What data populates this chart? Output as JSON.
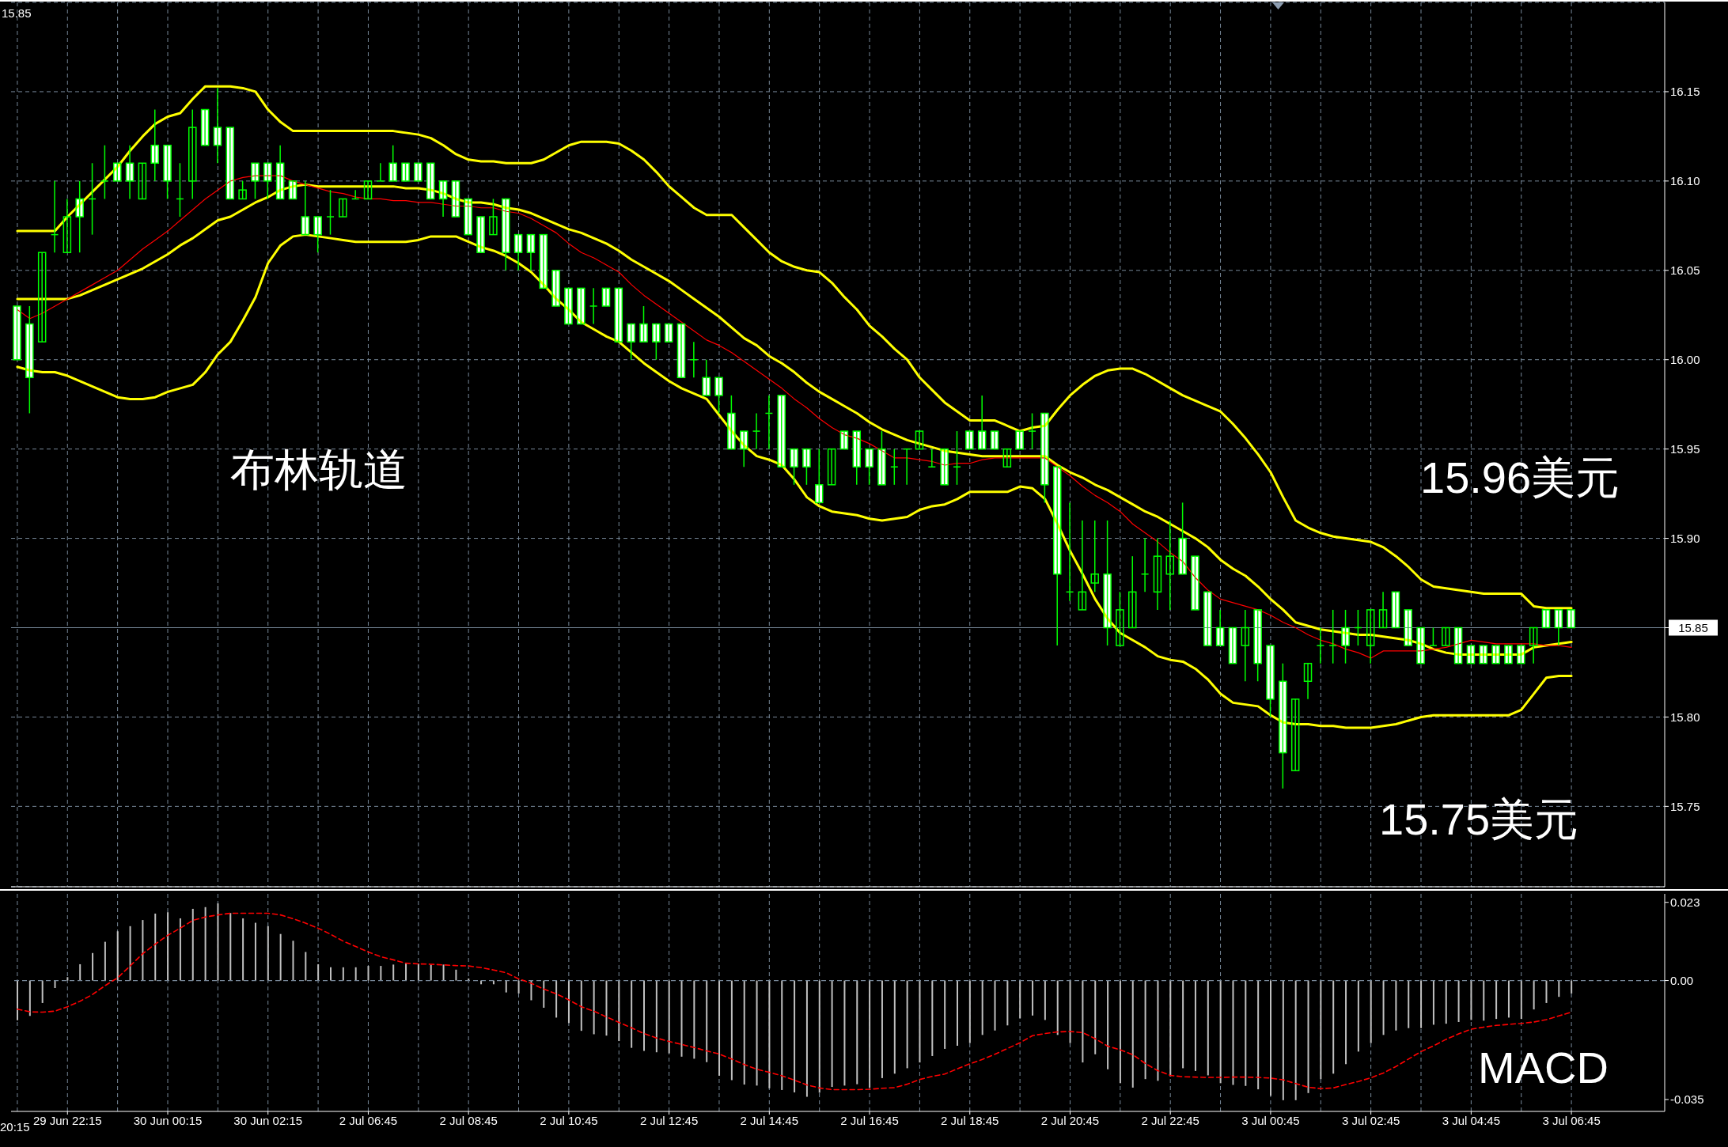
{
  "chart_data": [
    {
      "type": "candlestick",
      "categories": [
        null,
        null,
        null,
        null,
        null,
        null,
        null,
        null,
        null,
        null,
        null,
        null,
        null,
        null,
        null,
        null,
        null,
        null,
        null,
        null,
        null,
        null,
        null,
        null,
        null,
        null,
        null,
        null,
        null,
        null,
        null,
        null,
        null,
        null,
        null,
        null,
        null,
        null,
        null,
        null,
        null,
        null,
        null,
        null,
        null,
        null,
        null,
        null,
        null,
        null,
        null,
        null,
        null,
        null,
        null,
        null,
        null,
        null,
        null,
        null,
        null,
        null,
        null,
        null,
        null,
        null,
        null,
        null,
        null,
        null,
        null,
        null,
        null,
        null,
        null,
        null,
        null,
        null,
        null,
        null,
        null,
        null,
        null,
        null,
        null,
        null,
        null,
        null,
        null,
        null,
        null,
        null,
        null,
        null,
        null,
        null,
        null,
        null,
        null,
        null,
        null,
        null,
        null,
        null,
        null,
        null,
        null,
        null,
        null,
        null,
        null,
        null,
        null,
        null,
        null,
        null,
        null,
        null,
        null,
        null,
        null,
        null,
        null,
        null,
        null
      ],
      "ohlc": [
        [
          16.03,
          16.03,
          16.0,
          16.0
        ],
        [
          16.02,
          16.03,
          15.97,
          15.99
        ],
        [
          16.01,
          16.06,
          16.01,
          16.06
        ],
        [
          16.07,
          16.1,
          16.06,
          16.07
        ],
        [
          16.06,
          16.09,
          16.06,
          16.08
        ],
        [
          16.09,
          16.1,
          16.06,
          16.08
        ],
        [
          16.09,
          16.11,
          16.07,
          16.09
        ],
        [
          16.1,
          16.12,
          16.09,
          16.1
        ],
        [
          16.11,
          16.11,
          16.1,
          16.1
        ],
        [
          16.11,
          16.12,
          16.09,
          16.1
        ],
        [
          16.09,
          16.11,
          16.09,
          16.11
        ],
        [
          16.12,
          16.14,
          16.1,
          16.11
        ],
        [
          16.12,
          16.12,
          16.09,
          16.1
        ],
        [
          16.09,
          16.11,
          16.08,
          16.09
        ],
        [
          16.1,
          16.14,
          16.09,
          16.13
        ],
        [
          16.14,
          16.14,
          16.12,
          16.12
        ],
        [
          16.13,
          16.152,
          16.11,
          16.12
        ],
        [
          16.13,
          16.13,
          16.09,
          16.09
        ],
        [
          16.09,
          16.1,
          16.09,
          16.095
        ],
        [
          16.11,
          16.11,
          16.09,
          16.1
        ],
        [
          16.11,
          16.11,
          16.09,
          16.1
        ],
        [
          16.11,
          16.12,
          16.09,
          16.09
        ],
        [
          16.1,
          16.1,
          16.09,
          16.09
        ],
        [
          16.08,
          16.1,
          16.07,
          16.07
        ],
        [
          16.08,
          16.08,
          16.06,
          16.07
        ],
        [
          16.08,
          16.095,
          16.07,
          16.08
        ],
        [
          16.08,
          16.09,
          16.08,
          16.09
        ],
        [
          16.09,
          16.095,
          16.09,
          16.09
        ],
        [
          16.09,
          16.1,
          16.09,
          16.1
        ],
        [
          16.1,
          16.11,
          16.1,
          16.1
        ],
        [
          16.11,
          16.12,
          16.1,
          16.1
        ],
        [
          16.11,
          16.11,
          16.1,
          16.1
        ],
        [
          16.11,
          16.11,
          16.1,
          16.1
        ],
        [
          16.11,
          16.11,
          16.09,
          16.09
        ],
        [
          16.1,
          16.1,
          16.08,
          16.09
        ],
        [
          16.1,
          16.1,
          16.08,
          16.08
        ],
        [
          16.09,
          16.09,
          16.07,
          16.07
        ],
        [
          16.08,
          16.08,
          16.06,
          16.06
        ],
        [
          16.07,
          16.09,
          16.07,
          16.08
        ],
        [
          16.09,
          16.09,
          16.05,
          16.06
        ],
        [
          16.07,
          16.07,
          16.05,
          16.06
        ],
        [
          16.07,
          16.07,
          16.05,
          16.06
        ],
        [
          16.07,
          16.07,
          16.04,
          16.04
        ],
        [
          16.05,
          16.05,
          16.03,
          16.03
        ],
        [
          16.04,
          16.04,
          16.02,
          16.02
        ],
        [
          16.04,
          16.04,
          16.02,
          16.02
        ],
        [
          16.03,
          16.04,
          16.02,
          16.03
        ],
        [
          16.04,
          16.04,
          16.03,
          16.03
        ],
        [
          16.04,
          16.04,
          16.01,
          16.01
        ],
        [
          16.02,
          16.02,
          16.0,
          16.01
        ],
        [
          16.02,
          16.03,
          16.01,
          16.01
        ],
        [
          16.02,
          16.02,
          16.0,
          16.01
        ],
        [
          16.02,
          16.02,
          16.01,
          16.01
        ],
        [
          16.02,
          16.02,
          15.99,
          15.99
        ],
        [
          16.0,
          16.01,
          15.99,
          16.0
        ],
        [
          15.99,
          16.0,
          15.98,
          15.98
        ],
        [
          15.99,
          15.99,
          15.97,
          15.98
        ],
        [
          15.97,
          15.98,
          15.95,
          15.95
        ],
        [
          15.96,
          15.96,
          15.94,
          15.95
        ],
        [
          15.96,
          15.97,
          15.95,
          15.96
        ],
        [
          15.97,
          15.98,
          15.95,
          15.97
        ],
        [
          15.98,
          15.98,
          15.94,
          15.94
        ],
        [
          15.95,
          15.95,
          15.93,
          15.94
        ],
        [
          15.95,
          15.95,
          15.93,
          15.94
        ],
        [
          15.93,
          15.95,
          15.92,
          15.92
        ],
        [
          15.93,
          15.95,
          15.93,
          15.95
        ],
        [
          15.96,
          15.96,
          15.95,
          15.95
        ],
        [
          15.96,
          15.96,
          15.93,
          15.94
        ],
        [
          15.95,
          15.95,
          15.93,
          15.94
        ],
        [
          15.95,
          15.96,
          15.93,
          15.93
        ],
        [
          15.94,
          15.95,
          15.93,
          15.94
        ],
        [
          15.95,
          15.95,
          15.93,
          15.95
        ],
        [
          15.95,
          15.96,
          15.95,
          15.96
        ],
        [
          15.94,
          15.95,
          15.94,
          15.94
        ],
        [
          15.95,
          15.95,
          15.93,
          15.93
        ],
        [
          15.94,
          15.96,
          15.93,
          15.94
        ],
        [
          15.96,
          15.96,
          15.95,
          15.95
        ],
        [
          15.96,
          15.98,
          15.95,
          15.95
        ],
        [
          15.96,
          15.96,
          15.95,
          15.95
        ],
        [
          15.94,
          15.95,
          15.94,
          15.95
        ],
        [
          15.96,
          15.96,
          15.95,
          15.95
        ],
        [
          15.96,
          15.97,
          15.95,
          15.96
        ],
        [
          15.97,
          15.97,
          15.92,
          15.93
        ],
        [
          15.94,
          15.94,
          15.84,
          15.88
        ],
        [
          15.87,
          15.92,
          15.865,
          15.87
        ],
        [
          15.86,
          15.91,
          15.86,
          15.87
        ],
        [
          15.875,
          15.91,
          15.87,
          15.88
        ],
        [
          15.88,
          15.91,
          15.84,
          15.85
        ],
        [
          15.84,
          15.87,
          15.84,
          15.86
        ],
        [
          15.85,
          15.89,
          15.85,
          15.87
        ],
        [
          15.88,
          15.9,
          15.87,
          15.88
        ],
        [
          15.87,
          15.9,
          15.86,
          15.89
        ],
        [
          15.88,
          15.91,
          15.86,
          15.89
        ],
        [
          15.9,
          15.92,
          15.88,
          15.88
        ],
        [
          15.89,
          15.89,
          15.86,
          15.86
        ],
        [
          15.87,
          15.87,
          15.84,
          15.84
        ],
        [
          15.85,
          15.86,
          15.84,
          15.84
        ],
        [
          15.85,
          15.85,
          15.83,
          15.83
        ],
        [
          15.84,
          15.86,
          15.82,
          15.85
        ],
        [
          15.86,
          15.86,
          15.82,
          15.83
        ],
        [
          15.84,
          15.84,
          15.8,
          15.81
        ],
        [
          15.82,
          15.83,
          15.76,
          15.78
        ],
        [
          15.77,
          15.81,
          15.77,
          15.81
        ],
        [
          15.82,
          15.83,
          15.81,
          15.83
        ],
        [
          15.84,
          15.85,
          15.83,
          15.84
        ],
        [
          15.84,
          15.86,
          15.83,
          15.84
        ],
        [
          15.85,
          15.86,
          15.83,
          15.84
        ],
        [
          15.85,
          15.86,
          15.84,
          15.85
        ],
        [
          15.84,
          15.86,
          15.83,
          15.86
        ],
        [
          15.85,
          15.87,
          15.85,
          15.86
        ],
        [
          15.87,
          15.87,
          15.85,
          15.85
        ],
        [
          15.86,
          15.86,
          15.84,
          15.84
        ],
        [
          15.85,
          15.85,
          15.83,
          15.83
        ],
        [
          15.84,
          15.85,
          15.84,
          15.84
        ],
        [
          15.84,
          15.85,
          15.84,
          15.85
        ],
        [
          15.85,
          15.85,
          15.83,
          15.83
        ],
        [
          15.84,
          15.84,
          15.83,
          15.83
        ],
        [
          15.84,
          15.84,
          15.83,
          15.83
        ],
        [
          15.84,
          15.84,
          15.83,
          15.83
        ],
        [
          15.84,
          15.84,
          15.83,
          15.83
        ],
        [
          15.84,
          15.84,
          15.83,
          15.83
        ],
        [
          15.84,
          15.85,
          15.83,
          15.85
        ],
        [
          15.86,
          15.86,
          15.85,
          15.85
        ],
        [
          15.86,
          15.86,
          15.84,
          15.85
        ],
        [
          15.86,
          15.86,
          15.85,
          15.85
        ]
      ],
      "color": "#00ff00",
      "colors": [
        "#ffffff",
        "#ffffff",
        "#00ff00",
        "#00ff00",
        "#00ff00",
        "#ffffff",
        "#00ff00",
        "#00ff00",
        "#ffffff",
        "#ffffff",
        "#00ff00",
        "#ffffff",
        "#ffffff",
        "#00ff00",
        "#00ff00",
        "#ffffff",
        "#ffffff",
        "#ffffff",
        "#00ff00",
        "#ffffff",
        "#ffffff",
        "#ffffff",
        "#ffffff",
        "#ffffff",
        "#ffffff",
        "#00ff00",
        "#00ff00",
        "#00ff00",
        "#00ff00",
        "#00ff00",
        "#ffffff",
        "#ffffff",
        "#ffffff",
        "#ffffff",
        "#ffffff",
        "#ffffff",
        "#ffffff",
        "#ffffff",
        "#00ff00",
        "#ffffff",
        "#ffffff",
        "#ffffff",
        "#ffffff",
        "#ffffff",
        "#ffffff",
        "#ffffff",
        "#00ff00",
        "#ffffff",
        "#ffffff",
        "#ffffff",
        "#ffffff",
        "#ffffff",
        "#ffffff",
        "#ffffff",
        "#00ff00",
        "#ffffff",
        "#ffffff",
        "#ffffff",
        "#ffffff",
        "#00ff00",
        "#00ff00",
        "#ffffff",
        "#ffffff",
        "#ffffff",
        "#ffffff",
        "#00ff00",
        "#ffffff",
        "#ffffff",
        "#ffffff",
        "#ffffff",
        "#00ff00",
        "#00ff00",
        "#00ff00",
        "#00ff00",
        "#ffffff",
        "#00ff00",
        "#ffffff",
        "#ffffff",
        "#ffffff",
        "#00ff00",
        "#ffffff",
        "#00ff00",
        "#ffffff",
        "#ffffff",
        "#00ff00",
        "#00ff00",
        "#00ff00",
        "#ffffff",
        "#00ff00",
        "#00ff00",
        "#00ff00",
        "#00ff00",
        "#00ff00",
        "#ffffff",
        "#ffffff",
        "#ffffff",
        "#ffffff",
        "#ffffff",
        "#00ff00",
        "#ffffff",
        "#ffffff",
        "#ffffff",
        "#00ff00",
        "#00ff00",
        "#00ff00",
        "#00ff00",
        "#ffffff",
        "#00ff00",
        "#00ff00",
        "#00ff00",
        "#ffffff",
        "#ffffff",
        "#ffffff",
        "#00ff00",
        "#00ff00",
        "#ffffff",
        "#ffffff",
        "#ffffff",
        "#ffffff",
        "#ffffff",
        "#ffffff",
        "#00ff00",
        "#ffffff",
        "#ffffff",
        "#ffffff"
      ],
      "series": [
        {
          "type": "line",
          "color": "#ffff00",
          "values": [
            16.072,
            16.072,
            16.072,
            16.072,
            16.08,
            16.087,
            16.094,
            16.101,
            16.108,
            16.117,
            16.125,
            16.132,
            16.136,
            16.138,
            16.146,
            16.153,
            16.153,
            16.153,
            16.152,
            16.15,
            16.14,
            16.133,
            16.128,
            16.128,
            16.128,
            16.128,
            16.128,
            16.128,
            16.128,
            16.128,
            16.128,
            16.127,
            16.126,
            16.124,
            16.12,
            16.115,
            16.112,
            16.111,
            16.111,
            16.11,
            16.11,
            16.11,
            16.112,
            16.116,
            16.12,
            16.122,
            16.122,
            16.122,
            16.121,
            16.117,
            16.112,
            16.105,
            16.097,
            16.091,
            16.085,
            16.081,
            16.081,
            16.081,
            16.074,
            16.067,
            16.06,
            16.055,
            16.052,
            16.05,
            16.049,
            16.043,
            16.035,
            16.028,
            16.019,
            16.013,
            16.006,
            16.0,
            15.99,
            15.983,
            15.976,
            15.971,
            15.966,
            15.966,
            15.966,
            15.963,
            15.96,
            15.962,
            15.963,
            15.972,
            15.98,
            15.986,
            15.991,
            15.994,
            15.995,
            15.995,
            15.992,
            15.988,
            15.984,
            15.98,
            15.977,
            15.974,
            15.971,
            15.964,
            15.956,
            15.947,
            15.937,
            15.923,
            15.91,
            15.906,
            15.903,
            15.901,
            15.9,
            15.899,
            15.898,
            15.895,
            15.89,
            15.884,
            15.877,
            15.873,
            15.872,
            15.871,
            15.87,
            15.869,
            15.869,
            15.869,
            15.869,
            15.862,
            15.861,
            15.861,
            15.861
          ]
        },
        {
          "type": "line",
          "color": "#ffff00",
          "values": [
            16.034,
            16.034,
            16.034,
            16.034,
            16.034,
            16.036,
            16.039,
            16.042,
            16.045,
            16.048,
            16.051,
            16.055,
            16.059,
            16.064,
            16.068,
            16.073,
            16.078,
            16.08,
            16.084,
            16.088,
            16.091,
            16.095,
            16.097,
            16.098,
            16.097,
            16.097,
            16.097,
            16.097,
            16.097,
            16.097,
            16.097,
            16.096,
            16.096,
            16.095,
            16.093,
            16.09,
            16.088,
            16.088,
            16.087,
            16.085,
            16.084,
            16.082,
            16.079,
            16.076,
            16.073,
            16.071,
            16.068,
            16.065,
            16.061,
            16.056,
            16.052,
            16.048,
            16.044,
            16.039,
            16.034,
            16.029,
            16.024,
            16.018,
            16.012,
            16.008,
            16.002,
            15.998,
            15.993,
            15.987,
            15.982,
            15.978,
            15.974,
            15.97,
            15.965,
            15.961,
            15.958,
            15.955,
            15.953,
            15.951,
            15.949,
            15.948,
            15.947,
            15.946,
            15.946,
            15.946,
            15.946,
            15.946,
            15.946,
            15.941,
            15.937,
            15.934,
            15.93,
            15.927,
            15.923,
            15.919,
            15.915,
            15.912,
            15.908,
            15.904,
            15.9,
            15.895,
            15.888,
            15.883,
            15.879,
            15.873,
            15.866,
            15.86,
            15.853,
            15.851,
            15.849,
            15.848,
            15.847,
            15.846,
            15.846,
            15.845,
            15.844,
            15.843,
            15.841,
            15.838,
            15.836,
            15.835,
            15.835,
            15.835,
            15.835,
            15.835,
            15.835,
            15.839,
            15.84,
            15.841,
            15.842
          ]
        },
        {
          "type": "line",
          "color": "#ffff00",
          "values": [
            15.996,
            15.994,
            15.993,
            15.993,
            15.991,
            15.988,
            15.985,
            15.982,
            15.979,
            15.978,
            15.978,
            15.979,
            15.982,
            15.984,
            15.986,
            15.993,
            16.003,
            16.01,
            16.022,
            16.035,
            16.054,
            16.064,
            16.069,
            16.07,
            16.069,
            16.068,
            16.067,
            16.066,
            16.066,
            16.066,
            16.066,
            16.066,
            16.067,
            16.069,
            16.069,
            16.069,
            16.066,
            16.063,
            16.061,
            16.058,
            16.054,
            16.049,
            16.042,
            16.034,
            16.028,
            16.021,
            16.017,
            16.013,
            16.01,
            16.004,
            15.998,
            15.993,
            15.988,
            15.984,
            15.981,
            15.978,
            15.969,
            15.96,
            15.952,
            15.946,
            15.944,
            15.941,
            15.933,
            15.923,
            15.918,
            15.915,
            15.914,
            15.913,
            15.911,
            15.91,
            15.911,
            15.912,
            15.916,
            15.918,
            15.919,
            15.922,
            15.926,
            15.926,
            15.926,
            15.926,
            15.929,
            15.928,
            15.922,
            15.908,
            15.893,
            15.88,
            15.866,
            15.855,
            15.847,
            15.843,
            15.839,
            15.834,
            15.832,
            15.831,
            15.827,
            15.821,
            15.813,
            15.808,
            15.807,
            15.806,
            15.801,
            15.797,
            15.796,
            15.796,
            15.795,
            15.795,
            15.794,
            15.794,
            15.794,
            15.795,
            15.796,
            15.798,
            15.8,
            15.801,
            15.801,
            15.801,
            15.801,
            15.801,
            15.801,
            15.801,
            15.804,
            15.813,
            15.822,
            15.823,
            15.823
          ]
        },
        {
          "type": "line",
          "color": "#ff0000",
          "values": [
            16.028,
            16.023,
            16.026,
            16.03,
            16.034,
            16.038,
            16.042,
            16.046,
            16.05,
            16.056,
            16.062,
            16.067,
            16.072,
            16.078,
            16.084,
            16.09,
            16.095,
            16.1,
            16.102,
            16.103,
            16.103,
            16.103,
            16.1,
            16.098,
            16.096,
            16.094,
            16.093,
            16.091,
            16.09,
            16.09,
            16.089,
            16.089,
            16.088,
            16.088,
            16.087,
            16.086,
            16.086,
            16.085,
            16.085,
            16.083,
            16.082,
            16.079,
            16.075,
            16.071,
            16.065,
            16.06,
            16.057,
            16.053,
            16.049,
            16.042,
            16.036,
            16.031,
            16.026,
            16.021,
            16.016,
            16.011,
            16.008,
            16.004,
            15.999,
            15.994,
            15.989,
            15.984,
            15.978,
            15.973,
            15.967,
            15.962,
            15.958,
            15.956,
            15.953,
            15.949,
            15.945,
            15.945,
            15.944,
            15.943,
            15.941,
            15.942,
            15.942,
            15.944,
            15.945,
            15.945,
            15.945,
            15.945,
            15.945,
            15.94,
            15.935,
            15.929,
            15.924,
            15.92,
            15.915,
            15.908,
            15.903,
            15.898,
            15.892,
            15.887,
            15.878,
            15.871,
            15.866,
            15.864,
            15.862,
            15.86,
            15.857,
            15.853,
            15.85,
            15.846,
            15.843,
            15.841,
            15.838,
            15.836,
            15.833,
            15.837,
            15.837,
            15.837,
            15.837,
            15.838,
            15.839,
            15.841,
            15.843,
            15.842,
            15.841,
            15.841,
            15.841,
            15.841,
            15.84,
            15.84,
            15.839
          ]
        }
      ],
      "ylim": [
        15.705,
        16.2
      ],
      "yticks": [
        15.75,
        {
          "value": 15.8,
          "label": "15.80"
        },
        {
          "value": 15.85,
          "label": null
        },
        {
          "value": 15.9,
          "label": "15.90"
        },
        15.95,
        {
          "value": 16,
          "label": "16.00"
        },
        16.05,
        {
          "value": 16.1,
          "label": "16.10"
        },
        16.15
      ],
      "grid": true,
      "tick_labels": "y",
      "ref_lines": [
        {
          "axis": "y",
          "value": 15.85,
          "label": "15.85",
          "color": "#778899"
        }
      ],
      "annotations": [
        "15.85",
        "布林轨道",
        "15.96美元",
        "15.75美元"
      ]
    },
    {
      "type": "bar",
      "categories": [
        null,
        null,
        null,
        null,
        "29 Jun 22:15",
        null,
        null,
        null,
        null,
        null,
        null,
        null,
        "30 Jun 00:15",
        null,
        null,
        null,
        null,
        null,
        null,
        null,
        "30 Jun 02:15",
        null,
        null,
        null,
        null,
        null,
        null,
        null,
        "2 Jul 06:45",
        null,
        null,
        null,
        null,
        null,
        null,
        null,
        "2 Jul 08:45",
        null,
        null,
        null,
        null,
        null,
        null,
        null,
        "2 Jul 10:45",
        null,
        null,
        null,
        null,
        null,
        null,
        null,
        "2 Jul 12:45",
        null,
        null,
        null,
        null,
        null,
        null,
        null,
        "2 Jul 14:45",
        null,
        null,
        null,
        null,
        null,
        null,
        null,
        "2 Jul 16:45",
        null,
        null,
        null,
        null,
        null,
        null,
        null,
        "2 Jul 18:45",
        null,
        null,
        null,
        null,
        null,
        null,
        null,
        "2 Jul 20:45",
        null,
        null,
        null,
        null,
        null,
        null,
        null,
        "2 Jul 22:45",
        null,
        null,
        null,
        null,
        null,
        null,
        null,
        "3 Jul 00:45",
        null,
        null,
        null,
        null,
        null,
        null,
        null,
        "3 Jul 02:45",
        null,
        null,
        null,
        null,
        null,
        null,
        null,
        "3 Jul 04:45",
        null,
        null,
        null,
        null,
        null,
        null,
        null,
        "3 Jul 06:45"
      ],
      "series": [
        {
          "color": "#c0c0c0",
          "values": [
            -0.0117,
            -0.0104,
            -0.0066,
            -0.0022,
            0.001,
            0.0048,
            0.0081,
            0.0114,
            0.0145,
            0.016,
            0.0178,
            0.0197,
            0.0201,
            0.0183,
            0.0211,
            0.0216,
            0.0227,
            0.0199,
            0.0183,
            0.017,
            0.016,
            0.0137,
            0.0117,
            0.0084,
            0.0048,
            0.0039,
            0.0039,
            0.0039,
            0.0043,
            0.0043,
            0.0047,
            0.005,
            0.005,
            0.0047,
            0.0047,
            0.0032,
            0.0006,
            -0.0011,
            -0.0011,
            -0.0035,
            -0.0038,
            -0.0058,
            -0.008,
            -0.0109,
            -0.0125,
            -0.0148,
            -0.0158,
            -0.0162,
            -0.0178,
            -0.0198,
            -0.0207,
            -0.0211,
            -0.0214,
            -0.0224,
            -0.023,
            -0.024,
            -0.028,
            -0.0293,
            -0.0306,
            -0.0309,
            -0.0317,
            -0.0322,
            -0.0329,
            -0.0342,
            -0.033,
            -0.0313,
            -0.0309,
            -0.0305,
            -0.0315,
            -0.0287,
            -0.0274,
            -0.0258,
            -0.0241,
            -0.0222,
            -0.0201,
            -0.0192,
            -0.0184,
            -0.016,
            -0.0147,
            -0.0132,
            -0.0111,
            -0.0103,
            -0.0116,
            -0.016,
            -0.0184,
            -0.0241,
            -0.0217,
            -0.0261,
            -0.0302,
            -0.0315,
            -0.029,
            -0.0295,
            -0.0282,
            -0.0258,
            -0.0266,
            -0.0279,
            -0.0302,
            -0.0307,
            -0.031,
            -0.032,
            -0.0339,
            -0.0352,
            -0.0352,
            -0.0331,
            -0.029,
            -0.0274,
            -0.0246,
            -0.0209,
            -0.0184,
            -0.016,
            -0.0147,
            -0.014,
            -0.014,
            -0.013,
            -0.0127,
            -0.0122,
            -0.0116,
            -0.0118,
            -0.0113,
            -0.0109,
            -0.0113,
            -0.0085,
            -0.0066,
            -0.0048,
            -0.0038
          ]
        },
        {
          "type": "line",
          "color": "#ff0000",
          "line_style": "dashed",
          "values": [
            -0.0084,
            -0.0092,
            -0.0093,
            -0.009,
            -0.0077,
            -0.0061,
            -0.0041,
            -0.0015,
            0.0008,
            0.0043,
            0.0079,
            0.0107,
            0.0133,
            0.0154,
            0.0177,
            0.0187,
            0.0193,
            0.0198,
            0.0198,
            0.0198,
            0.0198,
            0.0193,
            0.0182,
            0.0169,
            0.0154,
            0.0136,
            0.0116,
            0.01,
            0.0084,
            0.007,
            0.0061,
            0.0051,
            0.0049,
            0.0048,
            0.0046,
            0.0044,
            0.0043,
            0.0038,
            0.0031,
            0.0023,
            0.0005,
            -0.0008,
            -0.0025,
            -0.0039,
            -0.0057,
            -0.0077,
            -0.009,
            -0.0107,
            -0.0123,
            -0.0139,
            -0.0156,
            -0.0169,
            -0.0179,
            -0.0188,
            -0.0197,
            -0.0207,
            -0.0216,
            -0.0231,
            -0.0247,
            -0.0261,
            -0.027,
            -0.028,
            -0.0293,
            -0.0307,
            -0.0316,
            -0.0321,
            -0.0321,
            -0.0321,
            -0.032,
            -0.0317,
            -0.0315,
            -0.0305,
            -0.0291,
            -0.0282,
            -0.0275,
            -0.026,
            -0.0245,
            -0.0232,
            -0.0217,
            -0.02,
            -0.0183,
            -0.0162,
            -0.0156,
            -0.0151,
            -0.015,
            -0.0153,
            -0.0171,
            -0.0193,
            -0.0204,
            -0.0218,
            -0.0244,
            -0.0265,
            -0.0279,
            -0.0283,
            -0.0284,
            -0.0285,
            -0.0285,
            -0.0284,
            -0.0284,
            -0.0285,
            -0.0287,
            -0.0292,
            -0.0303,
            -0.0314,
            -0.0318,
            -0.0316,
            -0.0306,
            -0.0297,
            -0.0286,
            -0.0272,
            -0.0253,
            -0.0231,
            -0.0209,
            -0.0192,
            -0.0173,
            -0.0157,
            -0.0143,
            -0.0137,
            -0.0132,
            -0.0129,
            -0.0126,
            -0.0122,
            -0.0115,
            -0.0104,
            -0.0093
          ]
        }
      ],
      "ylim": [
        -0.0385,
        0.0255
      ],
      "yticks": [
        -0.035,
        {
          "value": 0,
          "label": "0.00"
        },
        0.023
      ],
      "grid": "x",
      "ref_lines": [
        {
          "axis": "y",
          "value": 0,
          "color": "#778899",
          "line_style": "dashed"
        }
      ],
      "annotations": [
        "MACD",
        "20:15"
      ]
    }
  ]
}
